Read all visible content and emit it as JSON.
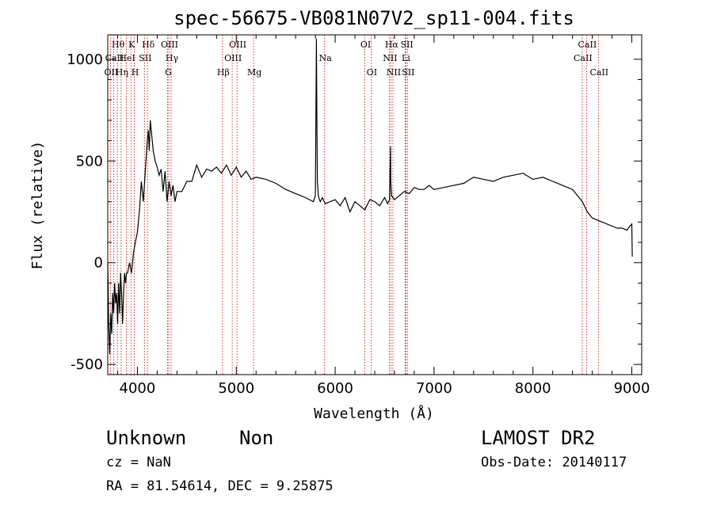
{
  "chart_data": {
    "type": "line",
    "title": "spec-56675-VB081N07V2_sp11-004.fits",
    "xlabel": "Wavelength (Å)",
    "ylabel": "Flux (relative)",
    "xlim": [
      3700,
      9100
    ],
    "ylim": [
      -550,
      1120
    ],
    "xticks": [
      4000,
      5000,
      6000,
      7000,
      8000,
      9000
    ],
    "yticks": [
      -500,
      0,
      500,
      1000
    ],
    "grid": false,
    "line_color": "#000000",
    "marker_color": "#cc0000",
    "series": [
      {
        "x": [
          3700,
          3710,
          3720,
          3730,
          3740,
          3750,
          3760,
          3770,
          3780,
          3790,
          3800,
          3810,
          3820,
          3830,
          3840,
          3850,
          3860,
          3870,
          3880,
          3890,
          3900,
          3920,
          3940,
          3960,
          3980,
          4000,
          4020,
          4040,
          4060,
          4080,
          4100,
          4110,
          4120,
          4130,
          4140,
          4150,
          4160,
          4180,
          4200,
          4220,
          4240,
          4260,
          4280,
          4300,
          4320,
          4340,
          4360,
          4380,
          4400,
          4450,
          4500,
          4550,
          4600,
          4650,
          4700,
          4750,
          4800,
          4850,
          4900,
          4950,
          5000,
          5050,
          5100,
          5150,
          5200,
          5300,
          5400,
          5500,
          5600,
          5700,
          5780,
          5800,
          5810,
          5815,
          5820,
          5830,
          5840,
          5850,
          5870,
          5900,
          5950,
          6000,
          6050,
          6100,
          6150,
          6200,
          6250,
          6300,
          6350,
          6400,
          6450,
          6500,
          6530,
          6550,
          6560,
          6562,
          6565,
          6570,
          6600,
          6650,
          6700,
          6750,
          6800,
          6850,
          6900,
          6950,
          7000,
          7100,
          7200,
          7300,
          7400,
          7500,
          7600,
          7700,
          7800,
          7900,
          8000,
          8100,
          8200,
          8300,
          8400,
          8450,
          8500,
          8550,
          8600,
          8650,
          8700,
          8750,
          8800,
          8850,
          8900,
          8950,
          8980,
          9000,
          9005
        ],
        "values": [
          0,
          -300,
          -450,
          -250,
          -350,
          -150,
          -250,
          -100,
          -200,
          -150,
          -300,
          -100,
          -250,
          -50,
          -150,
          -300,
          -150,
          -50,
          -100,
          -50,
          -50,
          0,
          -50,
          50,
          100,
          150,
          250,
          400,
          300,
          450,
          600,
          650,
          550,
          700,
          650,
          600,
          550,
          500,
          470,
          430,
          460,
          350,
          450,
          300,
          400,
          330,
          380,
          300,
          350,
          350,
          400,
          400,
          480,
          420,
          460,
          450,
          470,
          440,
          480,
          430,
          470,
          420,
          450,
          410,
          420,
          410,
          390,
          360,
          340,
          320,
          300,
          330,
          1100,
          700,
          400,
          330,
          310,
          300,
          320,
          290,
          300,
          310,
          280,
          320,
          250,
          300,
          280,
          260,
          310,
          300,
          280,
          320,
          290,
          310,
          570,
          420,
          370,
          330,
          310,
          330,
          350,
          340,
          370,
          360,
          360,
          380,
          360,
          370,
          380,
          390,
          420,
          410,
          400,
          420,
          430,
          440,
          410,
          420,
          400,
          380,
          360,
          330,
          300,
          250,
          220,
          210,
          200,
          190,
          180,
          170,
          170,
          160,
          180,
          190,
          30
        ]
      }
    ],
    "line_markers": [
      {
        "label": "OII",
        "wave": 3727,
        "row": 2
      },
      {
        "label": "Hθ",
        "wave": 3797,
        "row": 0
      },
      {
        "label": "CaII",
        "wave": 3760,
        "row": 1
      },
      {
        "label": "Hη",
        "wave": 3835,
        "row": 2
      },
      {
        "label": "HeI",
        "wave": 3889,
        "row": 1
      },
      {
        "label": "K",
        "wave": 3934,
        "row": 0
      },
      {
        "label": "H",
        "wave": 3969,
        "row": 2
      },
      {
        "label": "SII",
        "wave": 4071,
        "row": 1
      },
      {
        "label": "Hδ",
        "wave": 4102,
        "row": 0
      },
      {
        "label": "OIII",
        "wave": 4317,
        "row": 0
      },
      {
        "label": "Hγ",
        "wave": 4341,
        "row": 1
      },
      {
        "label": "G",
        "wave": 4305,
        "row": 2
      },
      {
        "label": "Hβ",
        "wave": 4861,
        "row": 2
      },
      {
        "label": "OIII",
        "wave": 4959,
        "row": 1
      },
      {
        "label": "OIII",
        "wave": 5007,
        "row": 0
      },
      {
        "label": "Mg",
        "wave": 5175,
        "row": 2
      },
      {
        "label": "Na",
        "wave": 5893,
        "row": 1
      },
      {
        "label": "OI",
        "wave": 6300,
        "row": 0
      },
      {
        "label": "OI",
        "wave": 6363,
        "row": 2
      },
      {
        "label": "Hα",
        "wave": 6563,
        "row": 0
      },
      {
        "label": "NII",
        "wave": 6548,
        "row": 1
      },
      {
        "label": "NII",
        "wave": 6584,
        "row": 2
      },
      {
        "label": "SII",
        "wave": 6717,
        "row": 0
      },
      {
        "label": "Li",
        "wave": 6708,
        "row": 1
      },
      {
        "label": "SII",
        "wave": 6731,
        "row": 2
      },
      {
        "label": "CaII",
        "wave": 8498,
        "row": 1
      },
      {
        "label": "CaII",
        "wave": 8542,
        "row": 0
      },
      {
        "label": "CaII",
        "wave": 8662,
        "row": 2
      }
    ]
  },
  "info": {
    "class_label": "Unknown",
    "subclass_label": "Non",
    "survey": "LAMOST DR2",
    "cz": "cz = NaN",
    "obs_date": "Obs-Date: 20140117",
    "coords": "RA =  81.54614, DEC =   9.25875"
  }
}
